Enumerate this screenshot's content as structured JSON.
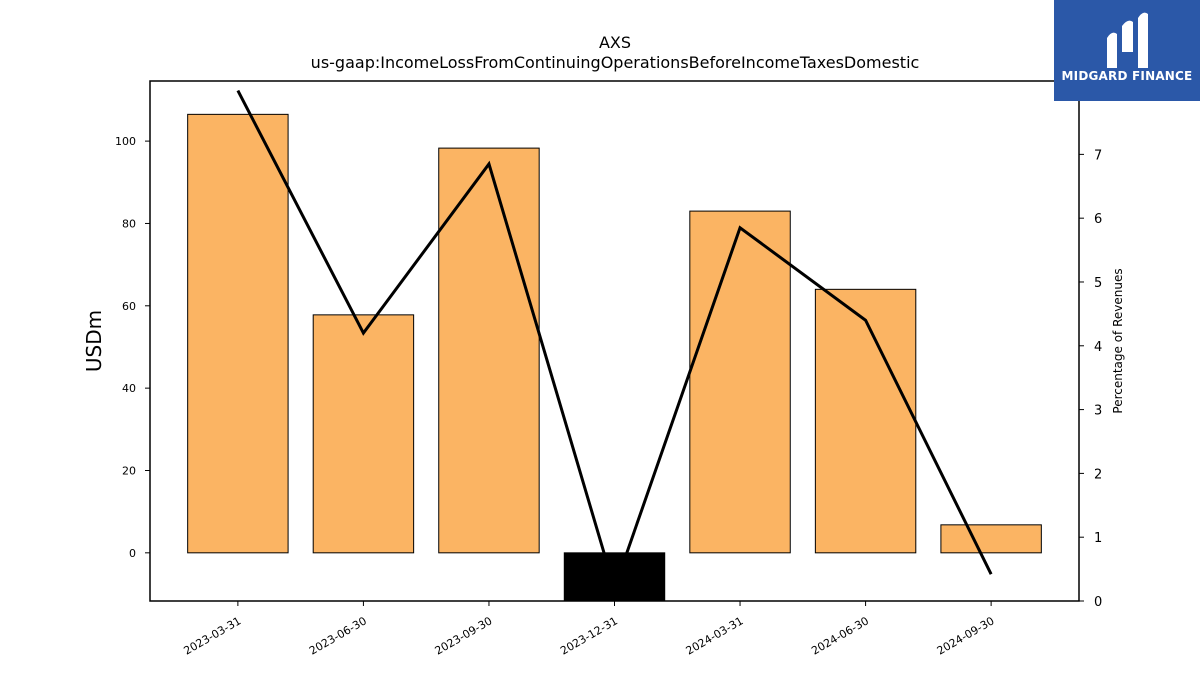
{
  "logo": {
    "text": "MIDGARD FINANCE",
    "background": "#2b58a8"
  },
  "chart_data": {
    "type": "bar",
    "title": "AXS",
    "subtitle": "us-gaap:IncomeLossFromContinuingOperationsBeforeIncomeTaxesDomestic",
    "ylabel": "USDm",
    "y2label": "Percentage of Revenues",
    "categories": [
      "2023-03-31",
      "2023-06-30",
      "2023-09-30",
      "2023-12-31",
      "2024-03-31",
      "2024-06-30",
      "2024-09-30"
    ],
    "series": [
      {
        "values": [
          106.5,
          57.8,
          98.3,
          -12.0,
          83.0,
          64.0,
          6.8
        ],
        "kind": "bar",
        "axis": "left",
        "color": "#fbb463",
        "negative_color": "#000000"
      },
      {
        "values": [
          8.0,
          4.2,
          6.85,
          0.2,
          5.85,
          4.4,
          0.42
        ],
        "kind": "line",
        "axis": "right",
        "color": "#000000"
      }
    ],
    "ylim": [
      -11.7,
      114.6
    ],
    "y2lim": [
      0,
      8.15
    ],
    "yticks": [
      0,
      20,
      40,
      60,
      80,
      100
    ],
    "y2ticks": [
      0,
      1,
      2,
      3,
      4,
      5,
      6,
      7
    ],
    "grid": false
  }
}
